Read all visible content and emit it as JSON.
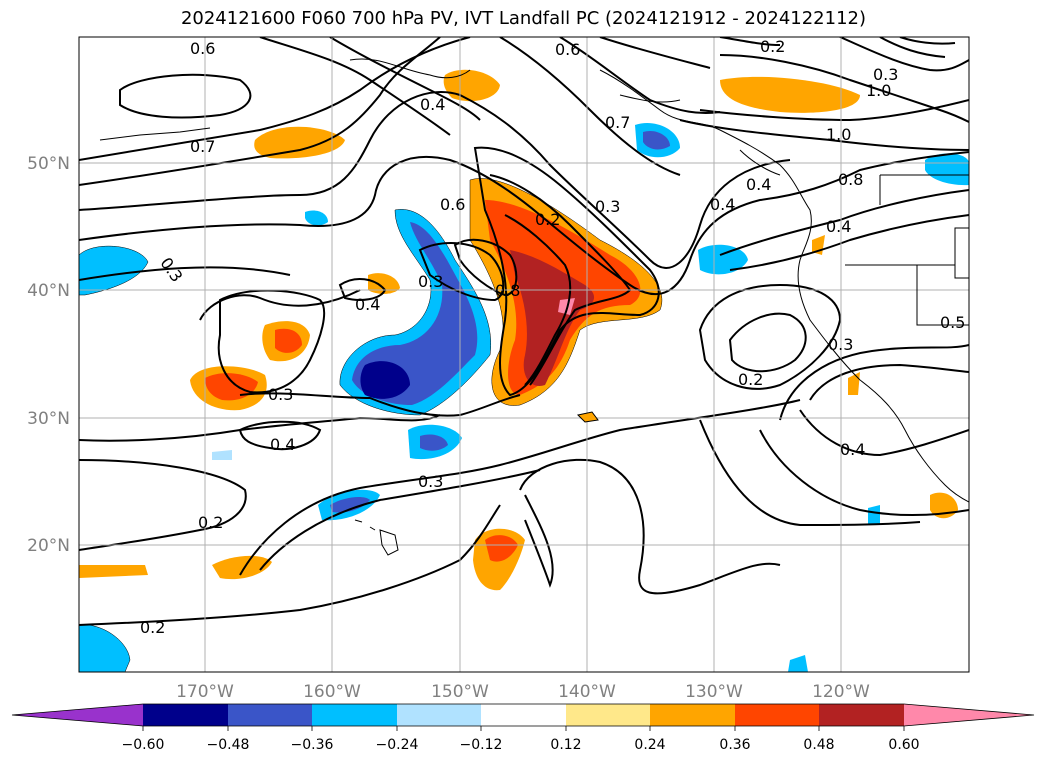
{
  "title": "2024121600 F060 700 hPa PV, IVT Landfall PC (2024121912 - 2024122112)",
  "lon_ticks": [
    "170°W",
    "160°W",
    "150°W",
    "140°W",
    "130°W",
    "120°W"
  ],
  "lat_ticks": [
    "50°N",
    "40°N",
    "30°N",
    "20°N"
  ],
  "colorbar": {
    "ticks": [
      "−0.60",
      "−0.48",
      "−0.36",
      "−0.24",
      "−0.12",
      "0.12",
      "0.24",
      "0.36",
      "0.48",
      "0.60"
    ],
    "colors": [
      "#9932cc",
      "#00008b",
      "#3a55c8",
      "#00bfff",
      "#b0e2ff",
      "#ffffff",
      "#ffe88a",
      "#ffa500",
      "#ff4500",
      "#b22222",
      "#ff88aa"
    ]
  },
  "contour_labels": [
    "0.6",
    "0.7",
    "0.3",
    "0.4",
    "0.6",
    "0.2",
    "0.8",
    "0.3",
    "0.4",
    "0.3",
    "0.3",
    "0.4",
    "0.2",
    "0.2",
    "0.3",
    "0.2",
    "0.6",
    "0.7",
    "0.3",
    "0.4",
    "0.4",
    "0.8",
    "1.0",
    "0.4",
    "0.3",
    "0.2",
    "0.5",
    "0.4",
    "1.0"
  ]
}
